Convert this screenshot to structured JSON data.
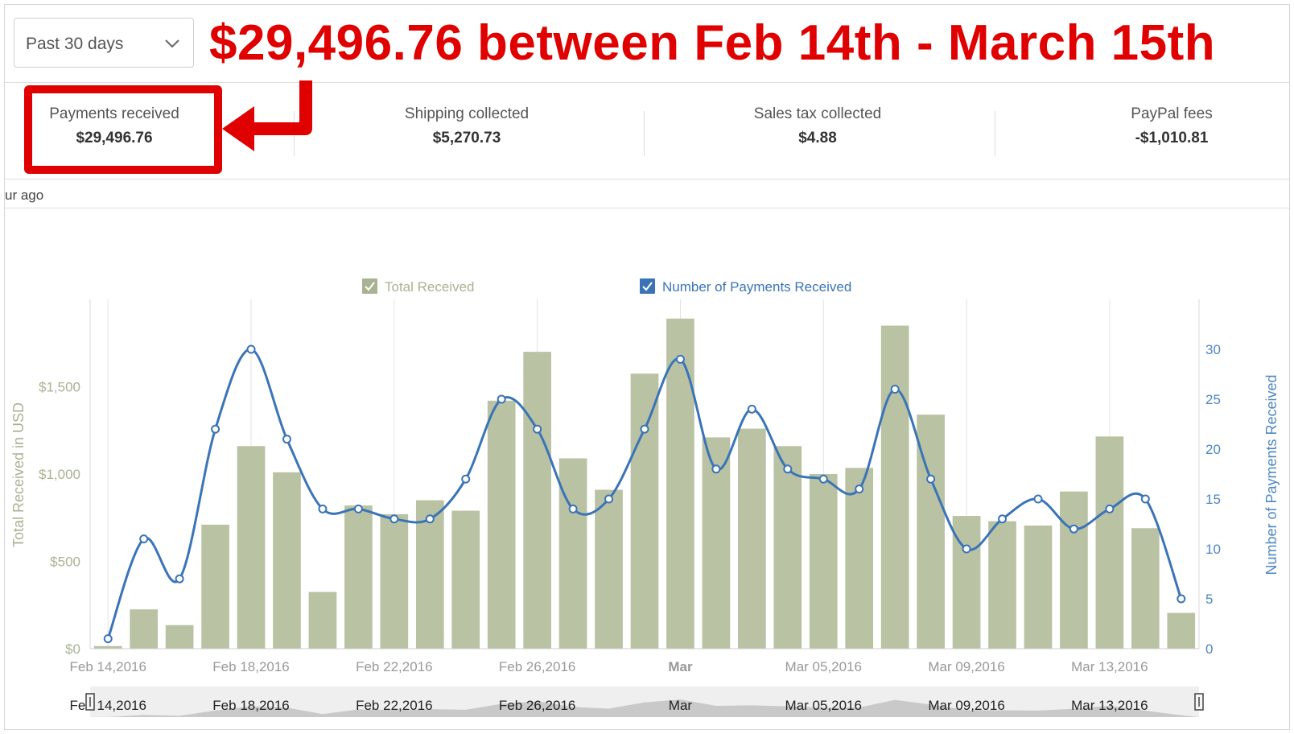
{
  "range_select": {
    "value": "Past 30 days"
  },
  "headline": "$29,496.76 between Feb 14th - March 15th",
  "summary": [
    {
      "title": "Payments received",
      "value": "$29,496.76"
    },
    {
      "title": "Shipping collected",
      "value": "$5,270.73"
    },
    {
      "title": "Sales tax collected",
      "value": "$4.88"
    },
    {
      "title": "PayPal fees",
      "value": "-$1,010.81"
    }
  ],
  "updated_text": "ur ago",
  "colors": {
    "bar": "#b9c2a3",
    "line": "#3a74b8",
    "highlight": "#e00000",
    "left_axis": "#a9b292",
    "right_axis": "#4f87c2"
  },
  "chart_data": {
    "type": "bar",
    "legend": [
      {
        "name": "Total Received",
        "checked": true,
        "color": "#a9b292"
      },
      {
        "name": "Number of Payments Received",
        "checked": true,
        "color": "#3a74b8"
      }
    ],
    "x": [
      "2016-02-14",
      "2016-02-15",
      "2016-02-16",
      "2016-02-17",
      "2016-02-18",
      "2016-02-19",
      "2016-02-20",
      "2016-02-21",
      "2016-02-22",
      "2016-02-23",
      "2016-02-24",
      "2016-02-25",
      "2016-02-26",
      "2016-02-27",
      "2016-02-28",
      "2016-02-29",
      "2016-03-01",
      "2016-03-02",
      "2016-03-03",
      "2016-03-04",
      "2016-03-05",
      "2016-03-06",
      "2016-03-07",
      "2016-03-08",
      "2016-03-09",
      "2016-03-10",
      "2016-03-11",
      "2016-03-12",
      "2016-03-13",
      "2016-03-14",
      "2016-03-15"
    ],
    "series": [
      {
        "name": "Total Received",
        "axis": "left",
        "type": "bar",
        "values": [
          15,
          225,
          135,
          710,
          1160,
          1010,
          325,
          820,
          770,
          850,
          790,
          1420,
          1700,
          1090,
          910,
          1575,
          1890,
          1210,
          1260,
          1160,
          1000,
          1035,
          1850,
          1340,
          760,
          730,
          705,
          900,
          1215,
          690,
          205
        ]
      },
      {
        "name": "Number of Payments Received",
        "axis": "right",
        "type": "line",
        "values": [
          1,
          11,
          7,
          22,
          30,
          21,
          14,
          14,
          13,
          13,
          17,
          25,
          22,
          14,
          15,
          22,
          29,
          18,
          24,
          18,
          17,
          16,
          26,
          17,
          10,
          13,
          15,
          12,
          14,
          15,
          5
        ]
      }
    ],
    "x_tick_labels": [
      "Feb 14,2016",
      "Feb 18,2016",
      "Feb 22,2016",
      "Feb 26,2016",
      "Mar",
      "Mar 05,2016",
      "Mar 09,2016",
      "Mar 13,2016"
    ],
    "y_left": {
      "label": "Total Received in USD",
      "ticks": [
        "$0",
        "$500",
        "$1,000",
        "$1,500"
      ],
      "range": [
        0,
        2000
      ]
    },
    "y_right": {
      "label": "Number of Payments Received",
      "ticks": [
        "0",
        "5",
        "10",
        "15",
        "20",
        "25",
        "30"
      ],
      "range": [
        0,
        35
      ]
    },
    "navigator_labels": [
      "Feb 14,2016",
      "Feb 18,2016",
      "Feb 22,2016",
      "Feb 26,2016",
      "Mar",
      "Mar 05,2016",
      "Mar 09,2016",
      "Mar 13,2016"
    ]
  }
}
